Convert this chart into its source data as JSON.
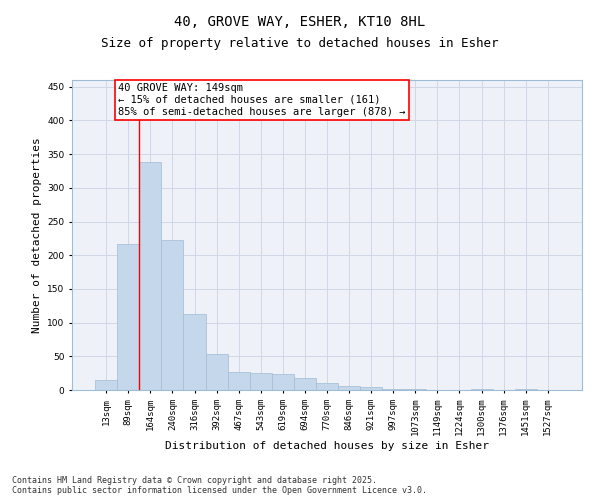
{
  "title_line1": "40, GROVE WAY, ESHER, KT10 8HL",
  "title_line2": "Size of property relative to detached houses in Esher",
  "xlabel": "Distribution of detached houses by size in Esher",
  "ylabel": "Number of detached properties",
  "categories": [
    "13sqm",
    "89sqm",
    "164sqm",
    "240sqm",
    "316sqm",
    "392sqm",
    "467sqm",
    "543sqm",
    "619sqm",
    "694sqm",
    "770sqm",
    "846sqm",
    "921sqm",
    "997sqm",
    "1073sqm",
    "1149sqm",
    "1224sqm",
    "1300sqm",
    "1376sqm",
    "1451sqm",
    "1527sqm"
  ],
  "values": [
    15,
    216,
    338,
    222,
    113,
    54,
    27,
    25,
    24,
    18,
    10,
    6,
    4,
    1,
    1,
    0,
    0,
    1,
    0,
    1,
    0
  ],
  "bar_color": "#c5d8eb",
  "bar_edge_color": "#a0bcd4",
  "grid_color": "#d0d8e8",
  "background_color": "#eef2f8",
  "annotation_text": "40 GROVE WAY: 149sqm\n← 15% of detached houses are smaller (161)\n85% of semi-detached houses are larger (878) →",
  "annotation_box_color": "white",
  "annotation_border_color": "red",
  "vline_color": "red",
  "vline_x": 1.5,
  "ylim": [
    0,
    460
  ],
  "yticks": [
    0,
    50,
    100,
    150,
    200,
    250,
    300,
    350,
    400,
    450
  ],
  "footer_line1": "Contains HM Land Registry data © Crown copyright and database right 2025.",
  "footer_line2": "Contains public sector information licensed under the Open Government Licence v3.0.",
  "title_fontsize": 10,
  "subtitle_fontsize": 9,
  "axis_label_fontsize": 8,
  "tick_fontsize": 6.5,
  "annotation_fontsize": 7.5,
  "footer_fontsize": 6
}
